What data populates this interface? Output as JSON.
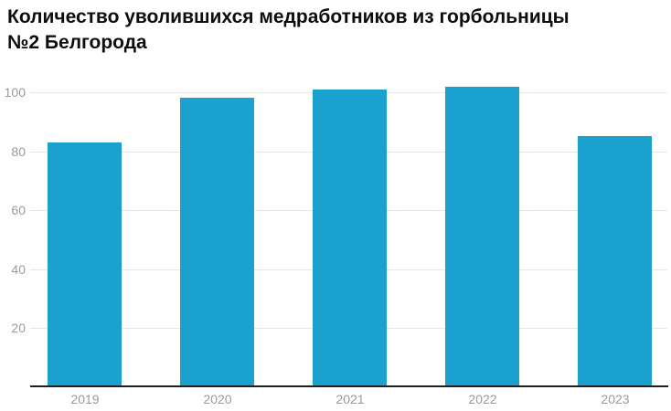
{
  "title_lines": [
    "Количество уволившихся медработников из горбольницы",
    "№2 Белгорода"
  ],
  "chart_data": {
    "type": "bar",
    "title": "Количество уволившихся медработников из горбольницы №2 Белгорода",
    "categories": [
      "2019",
      "2020",
      "2021",
      "2022",
      "2023"
    ],
    "values": [
      83,
      98,
      101,
      102,
      85
    ],
    "xlabel": "",
    "ylabel": "",
    "ylim": [
      0,
      105
    ],
    "yticks": [
      20,
      40,
      60,
      80,
      100
    ],
    "grid": true,
    "legend": "none",
    "colors": {
      "bar": "#1ba1ce",
      "gridline": "#e6e6e6",
      "axis_line": "#1f1f1f",
      "tick_label": "#9a9a9a",
      "title": "#0d0d0d",
      "background": "#ffffff"
    }
  }
}
